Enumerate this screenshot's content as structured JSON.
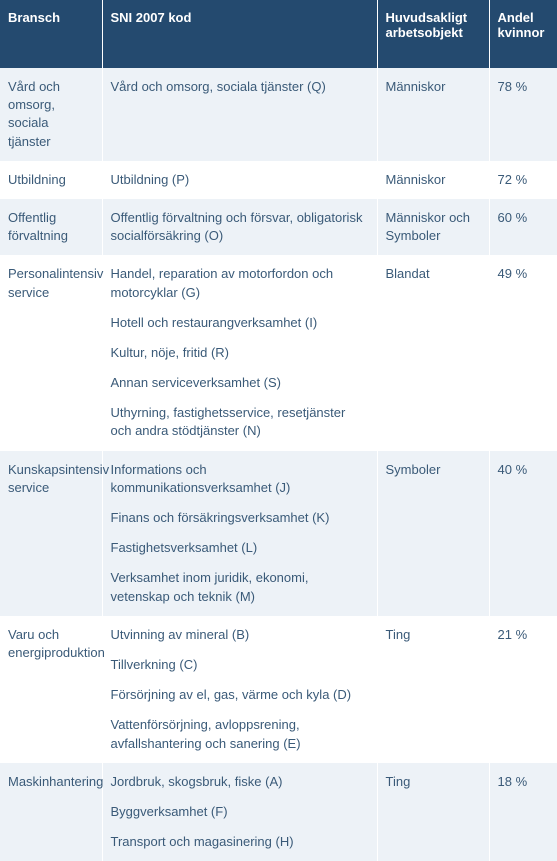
{
  "table": {
    "header_bg": "#244a6f",
    "header_color": "#ffffff",
    "row_odd_bg": "#edf2f7",
    "row_even_bg": "#ffffff",
    "text_color": "#3a5a78",
    "columns": [
      "Bransch",
      "SNI 2007 kod",
      "Huvudsakligt arbetsobjekt",
      "Andel kvinnor"
    ],
    "rows": [
      {
        "bransch": "Vård och omsorg, sociala tjänster",
        "sni": [
          "Vård och omsorg, sociala tjänster (Q)"
        ],
        "objekt": "Människor",
        "andel": "78 %"
      },
      {
        "bransch": "Utbildning",
        "sni": [
          "Utbildning (P)"
        ],
        "objekt": "Människor",
        "andel": "72 %"
      },
      {
        "bransch": "Offentlig förvaltning",
        "sni": [
          "Offentlig förvaltning och försvar, obligatorisk socialförsäkring (O)"
        ],
        "objekt": "Människor och Symboler",
        "andel": "60 %"
      },
      {
        "bransch": "Personalintensiv service",
        "sni": [
          "Handel, reparation av motorfordon och motorcyklar (G)",
          "Hotell och restaurangverksamhet (I)",
          "Kultur, nöje, fritid (R)",
          "Annan serviceverksamhet (S)",
          "Uthyrning, fastighetsservice, resetjänster och andra stödtjänster (N)"
        ],
        "objekt": "Blandat",
        "andel": "49 %"
      },
      {
        "bransch": "Kunskapsintensiv service",
        "sni": [
          "Informations och kommunikationsverksamhet (J)",
          "Finans och försäkringsverksamhet (K)",
          "Fastighetsverksamhet (L)",
          "Verksamhet inom juridik, ekonomi, vetenskap och teknik (M)"
        ],
        "objekt": "Symboler",
        "andel": "40 %"
      },
      {
        "bransch": "Varu och energiproduktion",
        "sni": [
          "Utvinning av mineral (B)",
          "Tillverkning (C)",
          "Försörjning av el, gas, värme och kyla (D)",
          "Vattenförsörjning, avloppsrening, avfallshantering och sanering (E)"
        ],
        "objekt": "Ting",
        "andel": "21 %"
      },
      {
        "bransch": "Maskinhantering",
        "sni": [
          "Jordbruk, skogsbruk, fiske (A)",
          "Byggverksamhet (F)",
          "Transport och magasinering (H)"
        ],
        "objekt": "Ting",
        "andel": "18 %"
      }
    ]
  }
}
